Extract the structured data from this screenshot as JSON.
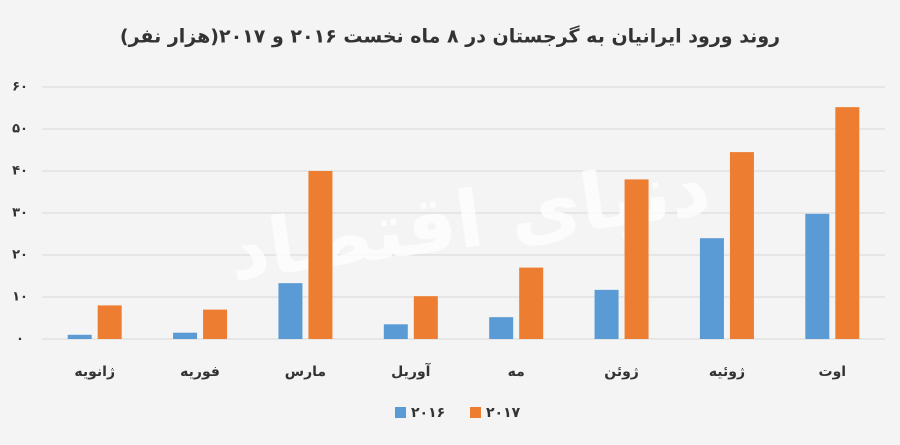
{
  "chart_data": {
    "type": "bar",
    "title": "روند ورود ایرانیان به گرجستان در ۸ ماه نخست ۲۰۱۶ و ۲۰۱۷(هزار نفر)",
    "watermark": "دنیای اقتصاد",
    "categories": [
      "ژانویه",
      "فوریه",
      "مارس",
      "آوریل",
      "مه",
      "ژوئن",
      "ژوئیه",
      "اوت"
    ],
    "series": [
      {
        "name": "۲۰۱۶",
        "color": "#5b9bd5",
        "values": [
          1,
          1.5,
          13.3,
          3.5,
          5.2,
          11.7,
          24,
          29.8
        ]
      },
      {
        "name": "۲۰۱۷",
        "color": "#ed7d31",
        "values": [
          8,
          7,
          40,
          10.2,
          17,
          38,
          44.5,
          55.2
        ]
      }
    ],
    "ylim": [
      0,
      60
    ],
    "yticks": [
      {
        "value": 0,
        "label": "۰"
      },
      {
        "value": 10,
        "label": "۱۰"
      },
      {
        "value": 20,
        "label": "۲۰"
      },
      {
        "value": 30,
        "label": "۳۰"
      },
      {
        "value": 40,
        "label": "۴۰"
      },
      {
        "value": 50,
        "label": "۵۰"
      },
      {
        "value": 60,
        "label": "۶۰"
      }
    ],
    "grid": true
  }
}
